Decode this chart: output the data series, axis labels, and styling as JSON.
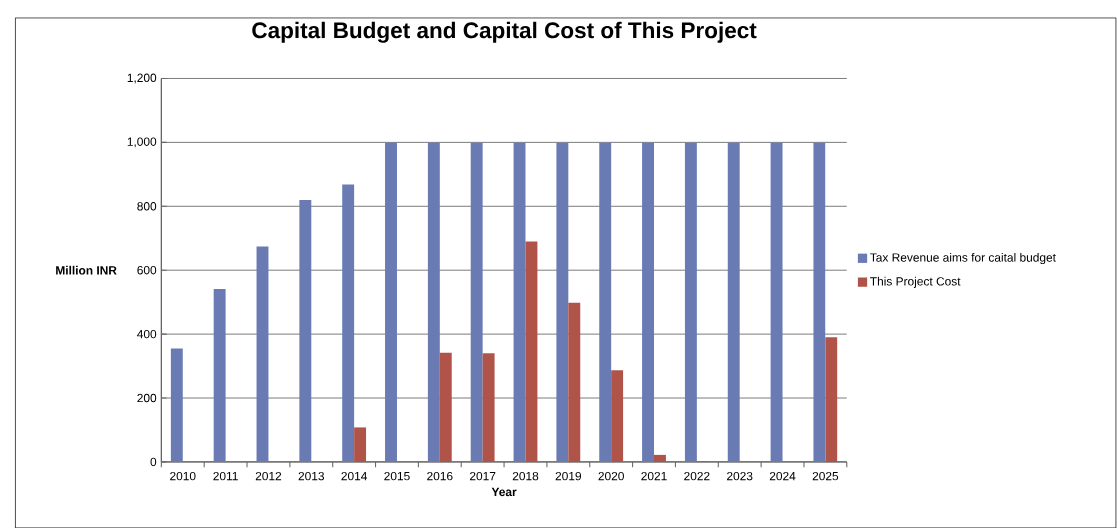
{
  "chart_data": {
    "type": "bar",
    "title": "Capital Budget and Capital Cost of This Project",
    "xlabel": "Year",
    "ylabel": "Million INR",
    "categories": [
      "2010",
      "2011",
      "2012",
      "2013",
      "2014",
      "2015",
      "2016",
      "2017",
      "2018",
      "2019",
      "2020",
      "2021",
      "2022",
      "2023",
      "2024",
      "2025"
    ],
    "series": [
      {
        "name": "Tax Revenue aims for caital budget",
        "color": "#6a7bb4",
        "values": [
          355,
          541,
          674,
          820,
          868,
          1000,
          1000,
          1000,
          1000,
          1000,
          1000,
          1000,
          1000,
          1000,
          1000,
          1000
        ]
      },
      {
        "name": "This Project Cost",
        "color": "#b0544a",
        "values": [
          0,
          0,
          0,
          0,
          108,
          0,
          342,
          340,
          690,
          498,
          287,
          22,
          2,
          0,
          0,
          390
        ]
      }
    ],
    "ylim": [
      0,
      1200
    ],
    "yticks": [
      0,
      200,
      400,
      600,
      800,
      {
        "value": 1000,
        "label": "1,000"
      },
      {
        "value": 1200,
        "label": "1,200"
      }
    ],
    "grid": "y",
    "legend": "right"
  }
}
